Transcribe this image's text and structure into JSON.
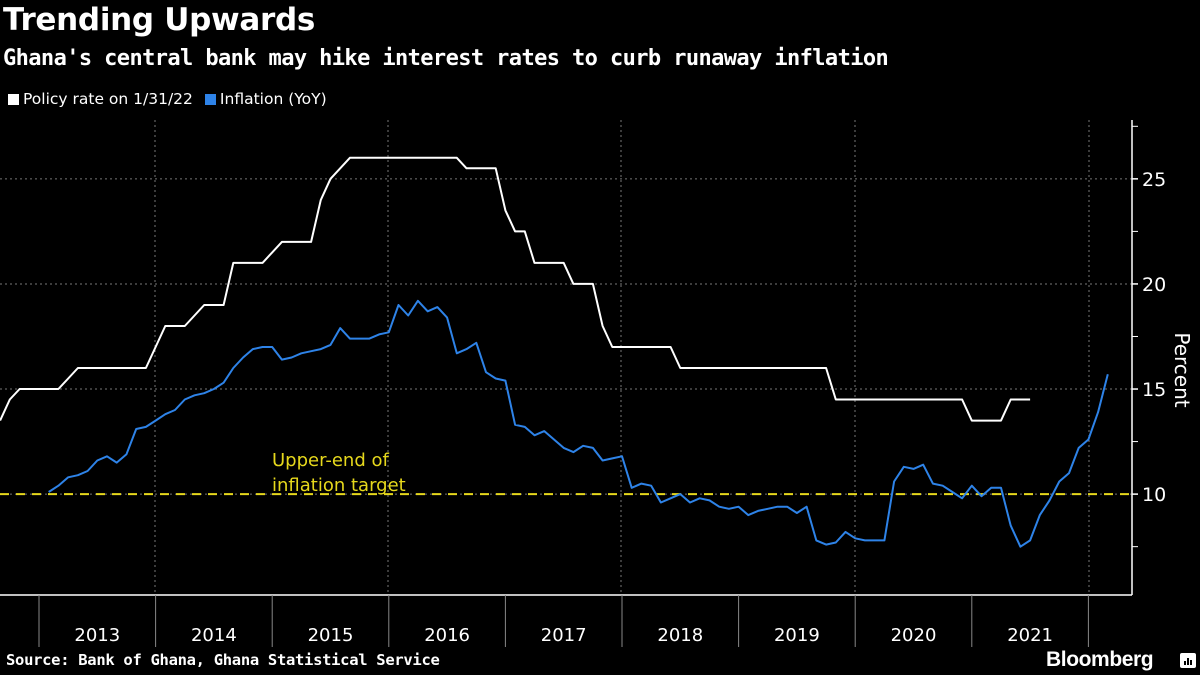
{
  "header": {
    "title": "Trending Upwards",
    "subtitle": "Ghana's central bank may hike interest rates to curb runaway inflation"
  },
  "legend": [
    {
      "label": "Policy rate on 1/31/22",
      "color": "#ffffff"
    },
    {
      "label": "Inflation (YoY)",
      "color": "#2e83e8"
    }
  ],
  "footer": {
    "source": "Source: Bank of Ghana, Ghana Statistical Service",
    "brand": "Bloomberg"
  },
  "chart_data": {
    "type": "line",
    "title": "Trending Upwards",
    "subtitle": "Ghana's central bank may hike interest rates to curb runaway inflation",
    "xlabel": "",
    "ylabel": "Percent",
    "ylim": [
      5.2,
      27.8
    ],
    "yticks": [
      10,
      15,
      20,
      25
    ],
    "yticks_minor": [
      7.5,
      12.5,
      17.5,
      22.5,
      27.5
    ],
    "xticks": [
      "2013",
      "2014",
      "2015",
      "2016",
      "2017",
      "2018",
      "2019",
      "2020",
      "2021"
    ],
    "x_unit": "month",
    "grid": true,
    "legend_position": "top-left",
    "reference_line": {
      "value": 10,
      "label_lines": [
        "Upper-end of",
        "inflation target"
      ],
      "color": "#e6d81c",
      "style": "dashed"
    },
    "series": [
      {
        "name": "Policy rate on 1/31/22",
        "color": "#ffffff",
        "start": "2012-08",
        "values": [
          13.5,
          14.5,
          15,
          15,
          15,
          15,
          15,
          15.5,
          16,
          16,
          16,
          16,
          16,
          16,
          16,
          16,
          17,
          18,
          18,
          18,
          18.5,
          19,
          19,
          19,
          21,
          21,
          21,
          21,
          21.5,
          22,
          22,
          22,
          22,
          24,
          25,
          25.5,
          26,
          26,
          26,
          26,
          26,
          26,
          26,
          26,
          26,
          26,
          26,
          26,
          25.5,
          25.5,
          25.5,
          25.5,
          23.5,
          22.5,
          22.5,
          21,
          21,
          21,
          21,
          20,
          20,
          20,
          18,
          17,
          17,
          17,
          17,
          17,
          17,
          17,
          16,
          16,
          16,
          16,
          16,
          16,
          16,
          16,
          16,
          16,
          16,
          16,
          16,
          16,
          16,
          16,
          14.5,
          14.5,
          14.5,
          14.5,
          14.5,
          14.5,
          14.5,
          14.5,
          14.5,
          14.5,
          14.5,
          14.5,
          14.5,
          14.5,
          13.5,
          13.5,
          13.5,
          13.5,
          14.5,
          14.5,
          14.5
        ]
      },
      {
        "name": "Inflation (YoY)",
        "color": "#2e83e8",
        "start": "2013-01",
        "values": [
          10.1,
          10.4,
          10.8,
          10.9,
          11.1,
          11.6,
          11.8,
          11.5,
          11.9,
          13.1,
          13.2,
          13.5,
          13.8,
          14.0,
          14.5,
          14.7,
          14.8,
          15.0,
          15.3,
          16.0,
          16.5,
          16.9,
          17.0,
          17.0,
          16.4,
          16.5,
          16.7,
          16.8,
          16.9,
          17.1,
          17.9,
          17.4,
          17.4,
          17.4,
          17.6,
          17.7,
          19.0,
          18.5,
          19.2,
          18.7,
          18.9,
          18.4,
          16.7,
          16.9,
          17.2,
          15.8,
          15.5,
          15.4,
          13.3,
          13.2,
          12.8,
          13.0,
          12.6,
          12.2,
          12.0,
          12.3,
          12.2,
          11.6,
          11.7,
          11.8,
          10.3,
          10.5,
          10.4,
          9.6,
          9.8,
          10.0,
          9.6,
          9.8,
          9.7,
          9.4,
          9.3,
          9.4,
          9.0,
          9.2,
          9.3,
          9.4,
          9.4,
          9.1,
          9.4,
          7.8,
          7.6,
          7.7,
          8.2,
          7.9,
          7.8,
          7.8,
          7.8,
          10.6,
          11.3,
          11.2,
          11.4,
          10.5,
          10.4,
          10.1,
          9.8,
          10.4,
          9.9,
          10.3,
          10.3,
          8.5,
          7.5,
          7.8,
          9.0,
          9.7,
          10.6,
          11.0,
          12.2,
          12.6,
          13.9,
          15.7
        ]
      }
    ]
  }
}
